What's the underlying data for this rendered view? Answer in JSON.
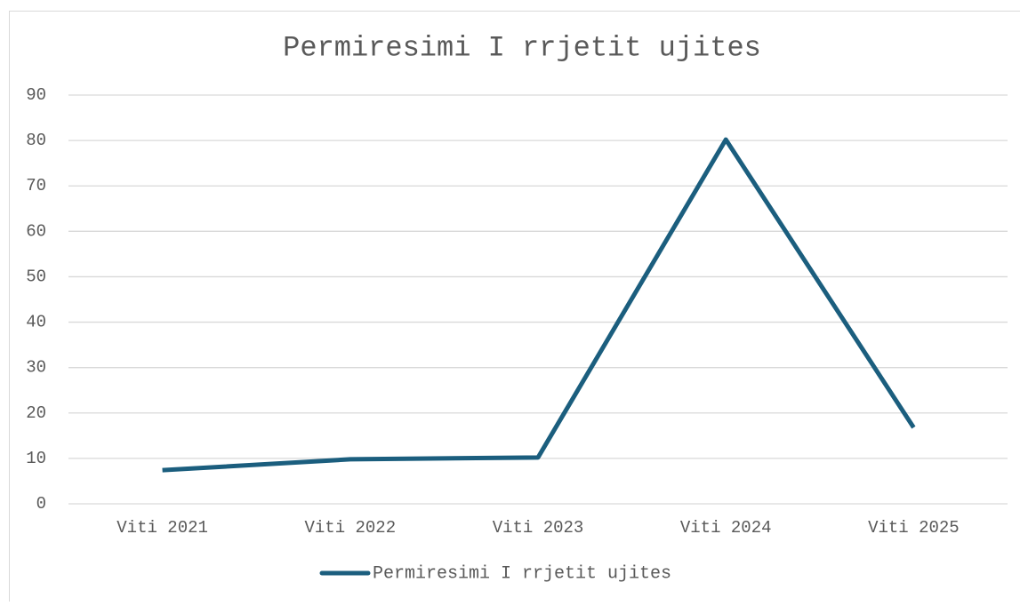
{
  "chart_data": {
    "type": "line",
    "title": "Permiresimi I rrjetit ujites",
    "categories": [
      "Viti 2021",
      "Viti 2022",
      "Viti 2023",
      "Viti 2024",
      "Viti 2025"
    ],
    "series": [
      {
        "name": "Permiresimi I rrjetit ujites",
        "color": "#1b5e7e",
        "values": [
          7.4,
          9.8,
          10.2,
          80.2,
          16.8
        ]
      }
    ],
    "ylim": [
      0,
      90
    ],
    "yticks": [
      0,
      10,
      20,
      30,
      40,
      50,
      60,
      70,
      80,
      90
    ],
    "grid": true,
    "legend": "bottom"
  }
}
